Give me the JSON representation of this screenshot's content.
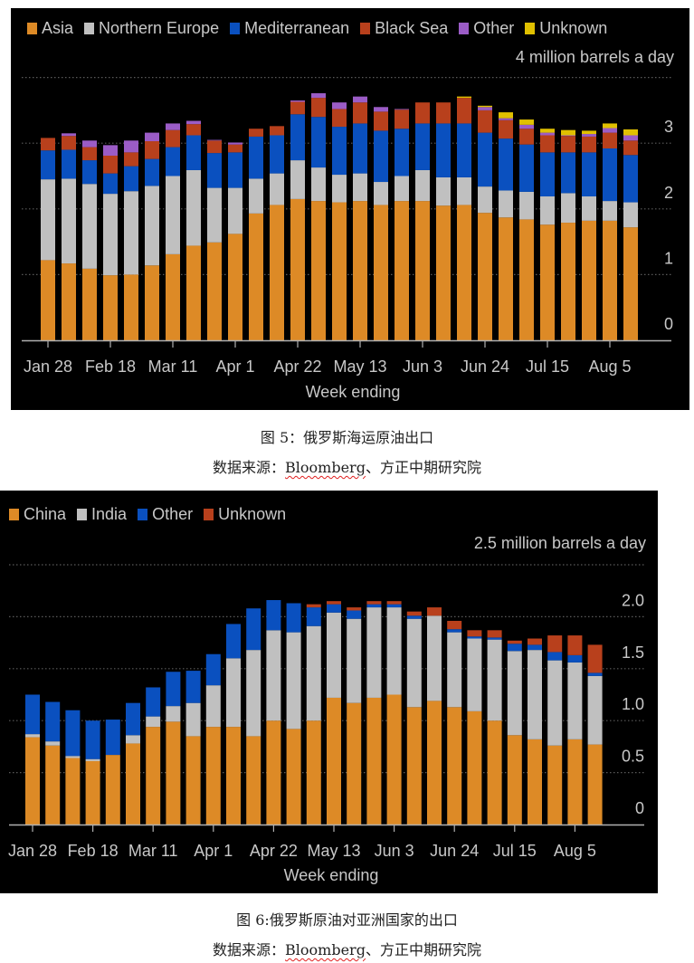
{
  "chart_data": [
    {
      "type": "bar",
      "stacked": true,
      "title": "",
      "unit_label": "4 million barrels a day",
      "xlabel": "Week ending",
      "ylabel": "",
      "ylim": [
        0,
        4
      ],
      "yticks": [
        "0",
        "1",
        "2",
        "3"
      ],
      "grid": true,
      "legend_position": "top-left",
      "categories": [
        "Jan 28",
        "Feb 4",
        "Feb 11",
        "Feb 18",
        "Feb 25",
        "Mar 4",
        "Mar 11",
        "Mar 18",
        "Mar 25",
        "Apr 1",
        "Apr 8",
        "Apr 15",
        "Apr 22",
        "Apr 29",
        "May 6",
        "May 13",
        "May 20",
        "May 27",
        "Jun 3",
        "Jun 10",
        "Jun 17",
        "Jun 24",
        "Jul 1",
        "Jul 8",
        "Jul 15",
        "Jul 22",
        "Jul 29",
        "Aug 5",
        "Aug 12"
      ],
      "xtick_labels": [
        "Jan 28",
        "Feb 18",
        "Mar 11",
        "Apr 1",
        "Apr 22",
        "May 13",
        "Jun 3",
        "Jun 24",
        "Jul 15",
        "Aug 5"
      ],
      "series": [
        {
          "name": "Asia",
          "color": "#dd8a26",
          "values": [
            1.22,
            1.17,
            1.09,
            0.99,
            1.0,
            1.14,
            1.31,
            1.44,
            1.49,
            1.62,
            1.93,
            2.06,
            2.15,
            2.12,
            2.1,
            2.12,
            2.06,
            2.12,
            2.12,
            2.05,
            2.06,
            1.94,
            1.87,
            1.84,
            1.76,
            1.79,
            1.82,
            1.82,
            1.72
          ]
        },
        {
          "name": "Northern Europe",
          "color": "#c0c0c0",
          "values": [
            1.23,
            1.29,
            1.29,
            1.24,
            1.27,
            1.21,
            1.19,
            1.15,
            0.83,
            0.7,
            0.53,
            0.48,
            0.59,
            0.51,
            0.42,
            0.42,
            0.35,
            0.38,
            0.47,
            0.43,
            0.42,
            0.4,
            0.41,
            0.42,
            0.43,
            0.45,
            0.37,
            0.3,
            0.38
          ]
        },
        {
          "name": "Mediterranean",
          "color": "#0a50bf",
          "values": [
            0.44,
            0.44,
            0.36,
            0.31,
            0.38,
            0.41,
            0.44,
            0.53,
            0.53,
            0.54,
            0.64,
            0.58,
            0.7,
            0.77,
            0.73,
            0.76,
            0.78,
            0.72,
            0.71,
            0.82,
            0.82,
            0.82,
            0.79,
            0.72,
            0.67,
            0.62,
            0.67,
            0.8,
            0.72
          ]
        },
        {
          "name": "Black Sea",
          "color": "#b8401c",
          "values": [
            0.19,
            0.21,
            0.2,
            0.27,
            0.21,
            0.27,
            0.26,
            0.17,
            0.19,
            0.12,
            0.12,
            0.14,
            0.19,
            0.29,
            0.27,
            0.32,
            0.29,
            0.29,
            0.32,
            0.32,
            0.39,
            0.34,
            0.28,
            0.24,
            0.26,
            0.25,
            0.24,
            0.24,
            0.22
          ]
        },
        {
          "name": "Other",
          "color": "#9b5cc6",
          "values": [
            0,
            0.04,
            0.1,
            0.16,
            0.18,
            0.13,
            0.1,
            0.05,
            0.01,
            0.03,
            0,
            0,
            0.02,
            0.07,
            0.1,
            0.09,
            0.07,
            0.01,
            0,
            0,
            0,
            0.05,
            0.03,
            0.06,
            0.04,
            0.01,
            0.04,
            0.07,
            0.08
          ]
        },
        {
          "name": "Unknown",
          "color": "#e0c000",
          "values": [
            0,
            0,
            0,
            0,
            0,
            0,
            0,
            0,
            0,
            0,
            0,
            0,
            0,
            0,
            0,
            0,
            0,
            0,
            0,
            0,
            0.02,
            0.02,
            0.09,
            0.08,
            0.06,
            0.08,
            0.05,
            0.07,
            0.09
          ]
        }
      ]
    },
    {
      "type": "bar",
      "stacked": true,
      "title": "",
      "unit_label": "2.5 million barrels a day",
      "xlabel": "Week ending",
      "ylabel": "",
      "ylim": [
        0,
        2.5
      ],
      "yticks": [
        "0",
        "0.5",
        "1.0",
        "1.5",
        "2.0"
      ],
      "grid": true,
      "legend_position": "top-left",
      "categories": [
        "Jan 28",
        "Feb 4",
        "Feb 11",
        "Feb 18",
        "Feb 25",
        "Mar 4",
        "Mar 11",
        "Mar 18",
        "Mar 25",
        "Apr 1",
        "Apr 8",
        "Apr 15",
        "Apr 22",
        "Apr 29",
        "May 6",
        "May 13",
        "May 20",
        "May 27",
        "Jun 3",
        "Jun 10",
        "Jun 17",
        "Jun 24",
        "Jul 1",
        "Jul 8",
        "Jul 15",
        "Jul 22",
        "Jul 29",
        "Aug 5",
        "Aug 12"
      ],
      "xtick_labels": [
        "Jan 28",
        "Feb 18",
        "Mar 11",
        "Apr 1",
        "Apr 22",
        "May 13",
        "Jun 3",
        "Jun 24",
        "Jul 15",
        "Aug 5"
      ],
      "series": [
        {
          "name": "China",
          "color": "#dd8a26",
          "values": [
            0.84,
            0.76,
            0.64,
            0.61,
            0.67,
            0.78,
            0.94,
            0.99,
            0.85,
            0.94,
            0.94,
            0.85,
            1.0,
            0.92,
            1.0,
            1.22,
            1.17,
            1.22,
            1.25,
            1.13,
            1.19,
            1.13,
            1.09,
            1.0,
            0.86,
            0.82,
            0.76,
            0.82,
            0.77
          ]
        },
        {
          "name": "India",
          "color": "#c0c0c0",
          "values": [
            0.03,
            0.04,
            0.02,
            0.02,
            0,
            0.08,
            0.1,
            0.15,
            0.32,
            0.4,
            0.66,
            0.83,
            0.87,
            0.93,
            0.91,
            0.82,
            0.81,
            0.87,
            0.84,
            0.85,
            0.82,
            0.72,
            0.7,
            0.78,
            0.81,
            0.86,
            0.82,
            0.74,
            0.66
          ]
        },
        {
          "name": "Other",
          "color": "#0a50bf",
          "values": [
            0.38,
            0.38,
            0.44,
            0.37,
            0.34,
            0.31,
            0.28,
            0.33,
            0.31,
            0.3,
            0.33,
            0.4,
            0.29,
            0.28,
            0.18,
            0.08,
            0.08,
            0.03,
            0.03,
            0.03,
            0,
            0.03,
            0.02,
            0.02,
            0.07,
            0.05,
            0.08,
            0.07,
            0.03
          ]
        },
        {
          "name": "Unknown",
          "color": "#b8401c",
          "values": [
            0,
            0,
            0,
            0,
            0,
            0,
            0,
            0,
            0,
            0,
            0,
            0,
            0,
            0,
            0.03,
            0.03,
            0.03,
            0.03,
            0.03,
            0.04,
            0.08,
            0.08,
            0.06,
            0.07,
            0.03,
            0.06,
            0.16,
            0.19,
            0.27
          ]
        }
      ]
    }
  ],
  "captions": {
    "fig5_title": "图 5：俄罗斯海运原油出口",
    "fig5_source_prefix": "数据来源：",
    "fig5_source_brand": "Bloomberg",
    "fig5_source_suffix": "、方正中期研究院",
    "fig6_title": "图 6:俄罗斯原油对亚洲国家的出口",
    "fig6_source_prefix": "数据来源：",
    "fig6_source_brand": "Bloomberg",
    "fig6_source_suffix": "、方正中期研究院"
  }
}
